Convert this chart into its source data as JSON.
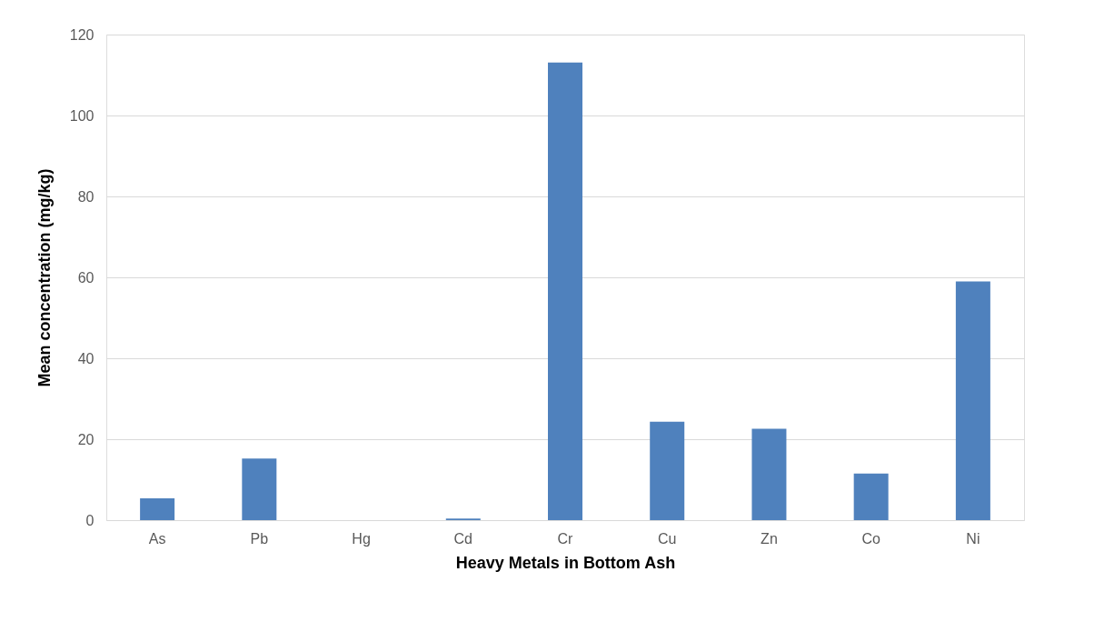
{
  "chart_data": {
    "type": "bar",
    "xlabel": "Heavy Metals in Bottom Ash",
    "ylabel": "Mean concentration (mg/kg)",
    "categories": [
      "As",
      "Pb",
      "Hg",
      "Cd",
      "Cr",
      "Cu",
      "Zn",
      "Co",
      "Ni"
    ],
    "values": [
      5.4,
      15.2,
      0,
      0.4,
      113.1,
      24.3,
      22.6,
      11.5,
      59.0
    ],
    "color": "#4f81bd",
    "ylim": [
      0,
      120
    ],
    "yticks": [
      0,
      20,
      40,
      60,
      80,
      100,
      120
    ],
    "grid": "y"
  }
}
